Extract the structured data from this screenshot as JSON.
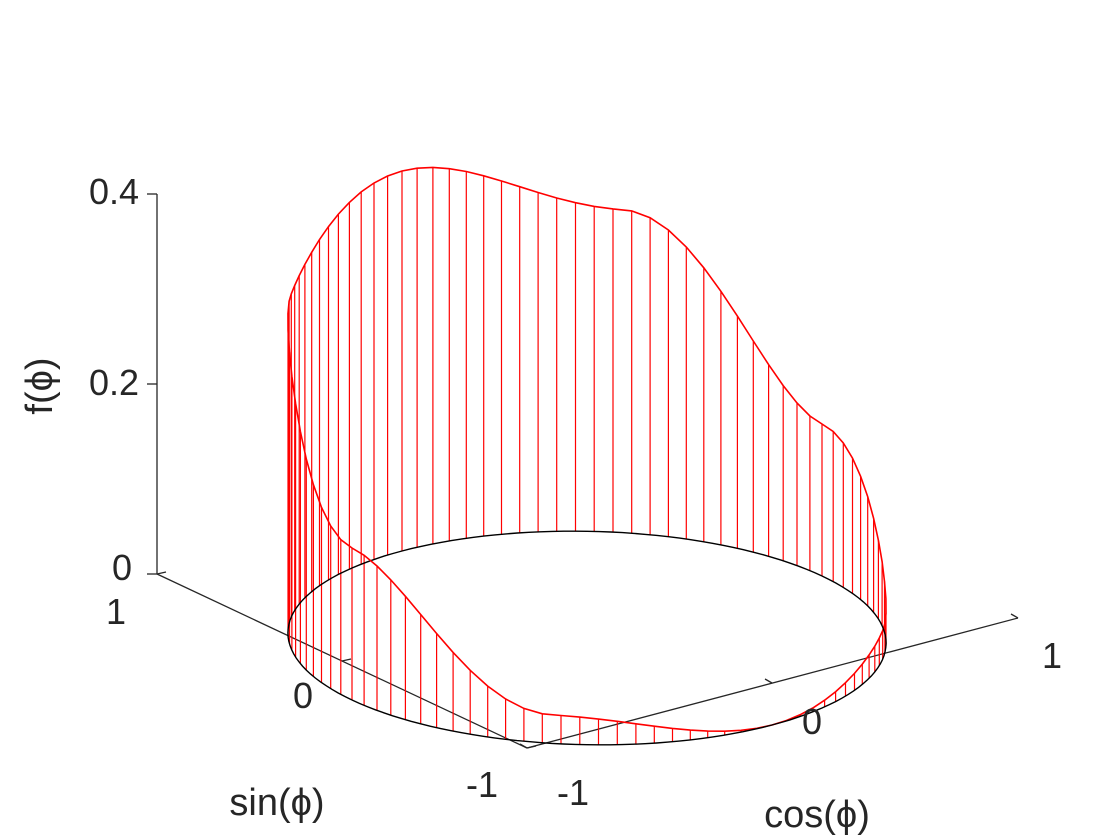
{
  "chart_data": {
    "type": "line",
    "subtype": "3d-stem",
    "title": "",
    "xlabel": "cos(ϕ)",
    "ylabel": "sin(ϕ)",
    "zlabel": "f(ϕ)",
    "xlim": [
      -1,
      1
    ],
    "ylim": [
      -1,
      1
    ],
    "zlim": [
      0,
      0.4
    ],
    "x_ticks": [
      "-1",
      "0",
      "1"
    ],
    "y_ticks": [
      "-1",
      "0",
      "1"
    ],
    "z_ticks": [
      "0",
      "0.2",
      "0.4"
    ],
    "grid": false,
    "series": [
      {
        "x_expression": "cos(phi)",
        "y_expression": "sin(phi)",
        "z_expression": "f(phi)",
        "phi_range": [
          0,
          6.2832
        ],
        "samples": 101,
        "stems": true,
        "color": "#ff0000",
        "baseline_color": "#000000",
        "z_samples": [
          {
            "phi": 0.0,
            "z": 0.16
          },
          {
            "phi": 0.785,
            "z": 0.34
          },
          {
            "phi": 1.571,
            "z": 0.4
          },
          {
            "phi": 2.356,
            "z": 0.34
          },
          {
            "phi": 3.142,
            "z": 0.16
          },
          {
            "phi": 3.927,
            "z": 0.03
          },
          {
            "phi": 4.712,
            "z": 0.0
          },
          {
            "phi": 5.498,
            "z": 0.03
          }
        ]
      }
    ]
  }
}
